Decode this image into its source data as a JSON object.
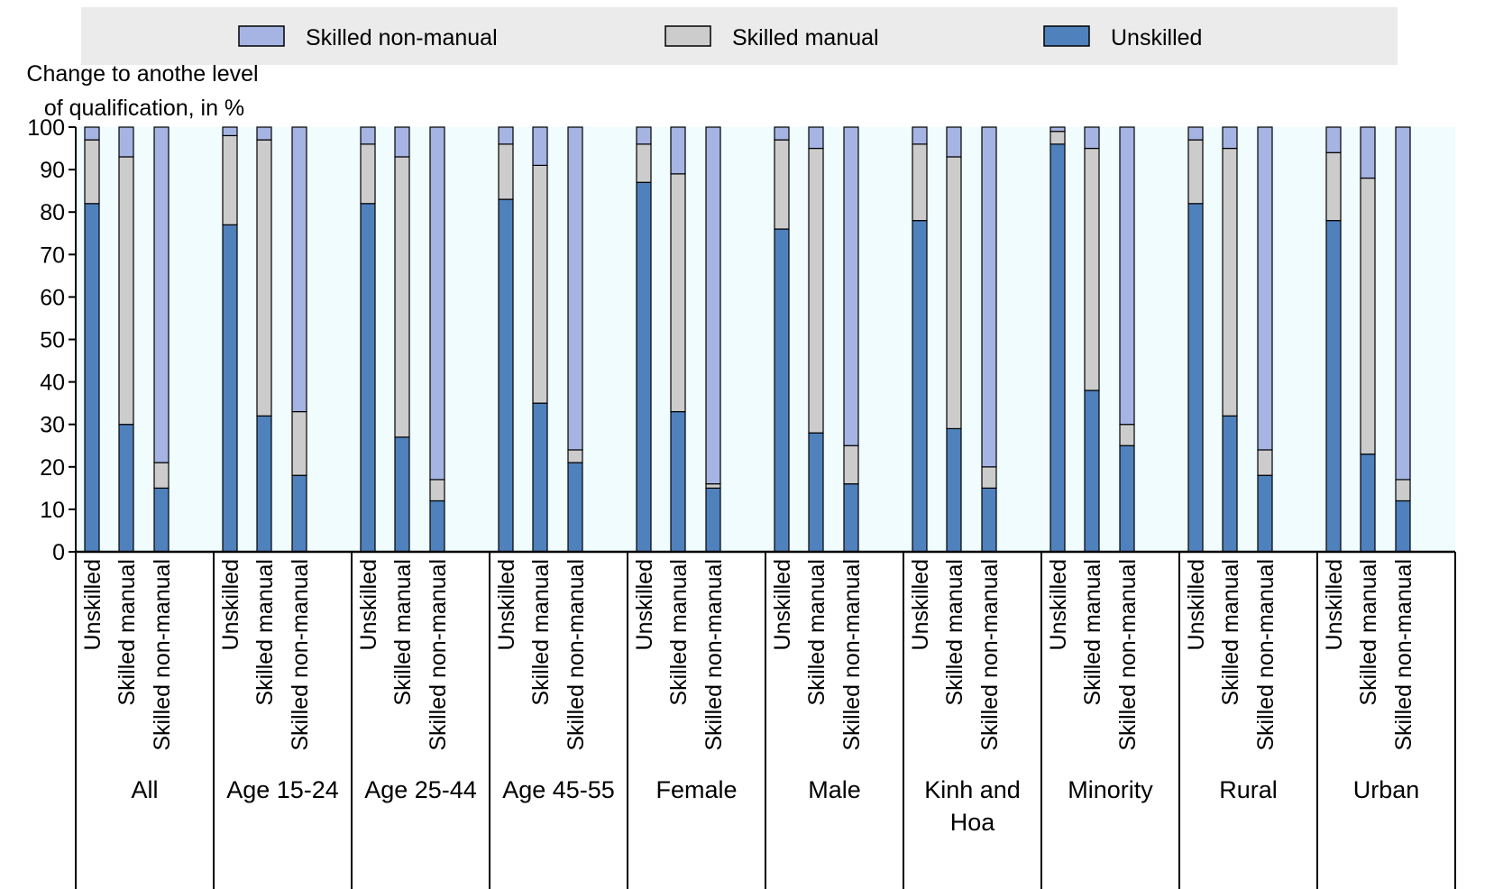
{
  "chart_data": {
    "type": "stacked_bar",
    "ylabel": [
      "Change to anothe level",
      "of qualification, in %"
    ],
    "groups": [
      "All",
      "Age 15-24",
      "Age 25-44",
      "Age 45-55",
      "Female",
      "Male",
      "Kinh and Hoa",
      "Minority",
      "Rural",
      "Urban"
    ],
    "categories": [
      "Unskilled",
      "Skilled manual",
      "Skilled non-manual",
      "Unskilled",
      "Skilled manual",
      "Skilled non-manual",
      "Unskilled",
      "Skilled manual",
      "Skilled non-manual",
      "Unskilled",
      "Skilled manual",
      "Skilled non-manual",
      "Unskilled",
      "Skilled manual",
      "Skilled non-manual",
      "Unskilled",
      "Skilled manual",
      "Skilled non-manual",
      "Unskilled",
      "Skilled manual",
      "Skilled non-manual",
      "Unskilled",
      "Skilled manual",
      "Skilled non-manual",
      "Unskilled",
      "Skilled manual",
      "Skilled non-manual",
      "Unskilled",
      "Skilled manual",
      "Skilled non-manual"
    ],
    "series": [
      {
        "name": "Unskilled",
        "color": "#4f81bd",
        "values": [
          82,
          30,
          15,
          77,
          32,
          18,
          82,
          27,
          12,
          83,
          35,
          21,
          87,
          33,
          15,
          76,
          28,
          16,
          78,
          29,
          15,
          96,
          38,
          25,
          82,
          32,
          18,
          78,
          23,
          12
        ]
      },
      {
        "name": "Skilled manual",
        "color": "#cccccc",
        "values": [
          15,
          63,
          6,
          21,
          65,
          15,
          14,
          66,
          5,
          13,
          56,
          3,
          9,
          56,
          1,
          21,
          67,
          9,
          18,
          64,
          5,
          3,
          57,
          5,
          15,
          63,
          6,
          16,
          65,
          5
        ]
      },
      {
        "name": "Skilled non-manual",
        "color": "#a6b4e4",
        "values": [
          3,
          7,
          79,
          2,
          3,
          67,
          4,
          7,
          83,
          4,
          9,
          76,
          4,
          11,
          84,
          3,
          5,
          75,
          4,
          7,
          80,
          1,
          5,
          70,
          3,
          5,
          76,
          6,
          12,
          83
        ]
      }
    ],
    "ylim": [
      0,
      100
    ],
    "yticks": [
      0,
      10,
      20,
      30,
      40,
      50,
      60,
      70,
      80,
      90,
      100
    ]
  }
}
